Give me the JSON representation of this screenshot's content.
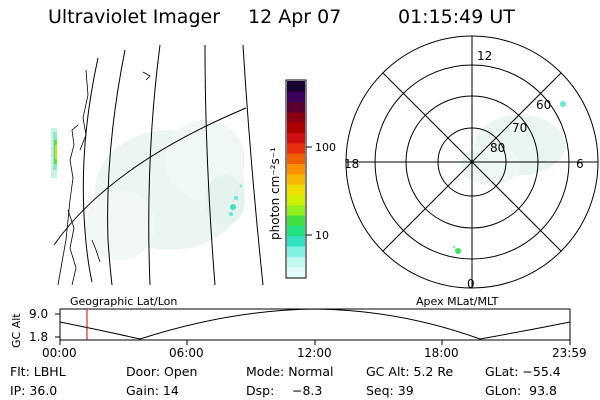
{
  "header": {
    "title": "Ultraviolet Imager",
    "date": "12 Apr 07",
    "time": "01:15:49 UT"
  },
  "colorbar": {
    "label": "photon cm⁻²s⁻¹",
    "ticks": [
      "100",
      "10"
    ],
    "colors": [
      "#1a0030",
      "#3a005a",
      "#5a0030",
      "#8a0010",
      "#b00000",
      "#d01010",
      "#e83010",
      "#f06000",
      "#f89000",
      "#f8b800",
      "#f0e000",
      "#d0f000",
      "#90f020",
      "#40e040",
      "#20e080",
      "#30e0c0",
      "#80f0e0",
      "#c0f8f0",
      "#e0fbf8"
    ]
  },
  "left_map": {
    "caption": "Geographic Lat/Lon"
  },
  "polar_plot": {
    "caption": "Apex MLat/MLT",
    "mlt_labels": [
      "12",
      "18",
      "6",
      "0"
    ],
    "lat_labels": [
      "60",
      "70",
      "80"
    ]
  },
  "altitude_strip": {
    "ylabel": "GC Alt",
    "ymax": "9.0",
    "ymin": "1.8",
    "time_labels": [
      "00:00",
      "06:00",
      "12:00",
      "18:00",
      "23:59"
    ],
    "marker_color": "#cc0000"
  },
  "info": {
    "row1": [
      "Flt: LBHL",
      "Door: Open",
      "Mode: Normal",
      "GC Alt: 5.2 Re",
      "GLat: −55.4"
    ],
    "row2": [
      "IP: 36.0",
      "Gain: 14",
      "Dsp:",
      "−8.3",
      "Seq: 39",
      "GLon:  93.8"
    ]
  }
}
